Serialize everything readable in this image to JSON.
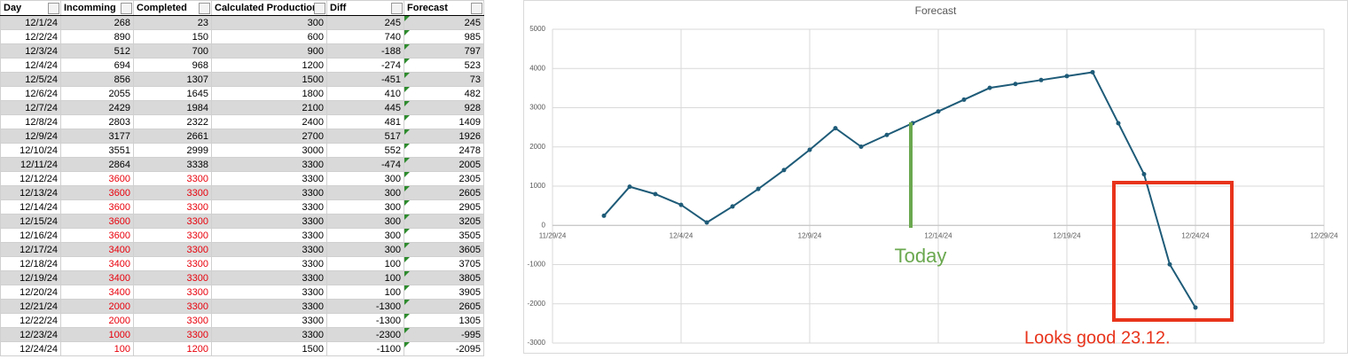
{
  "table": {
    "columns": [
      "Day",
      "Incomming",
      "Completed",
      "Calculated Production",
      "Diff",
      "Forecast"
    ],
    "rows": [
      [
        "12/1/24",
        268,
        23,
        300,
        245,
        245
      ],
      [
        "12/2/24",
        890,
        150,
        600,
        740,
        985
      ],
      [
        "12/3/24",
        512,
        700,
        900,
        -188,
        797
      ],
      [
        "12/4/24",
        694,
        968,
        1200,
        -274,
        523
      ],
      [
        "12/5/24",
        856,
        1307,
        1500,
        -451,
        73
      ],
      [
        "12/6/24",
        2055,
        1645,
        1800,
        410,
        482
      ],
      [
        "12/7/24",
        2429,
        1984,
        2100,
        445,
        928
      ],
      [
        "12/8/24",
        2803,
        2322,
        2400,
        481,
        1409
      ],
      [
        "12/9/24",
        3177,
        2661,
        2700,
        517,
        1926
      ],
      [
        "12/10/24",
        3551,
        2999,
        3000,
        552,
        2478
      ],
      [
        "12/11/24",
        2864,
        3338,
        3300,
        -474,
        2005
      ],
      [
        "12/12/24",
        3600,
        3300,
        3300,
        300,
        2305
      ],
      [
        "12/13/24",
        3600,
        3300,
        3300,
        300,
        2605
      ],
      [
        "12/14/24",
        3600,
        3300,
        3300,
        300,
        2905
      ],
      [
        "12/15/24",
        3600,
        3300,
        3300,
        300,
        3205
      ],
      [
        "12/16/24",
        3600,
        3300,
        3300,
        300,
        3505
      ],
      [
        "12/17/24",
        3400,
        3300,
        3300,
        300,
        3605
      ],
      [
        "12/18/24",
        3400,
        3300,
        3300,
        100,
        3705
      ],
      [
        "12/19/24",
        3400,
        3300,
        3300,
        100,
        3805
      ],
      [
        "12/20/24",
        3400,
        3300,
        3300,
        100,
        3905
      ],
      [
        "12/21/24",
        2000,
        3300,
        3300,
        -1300,
        2605
      ],
      [
        "12/22/24",
        2000,
        3300,
        3300,
        -1300,
        1305
      ],
      [
        "12/23/24",
        1000,
        3300,
        3300,
        -2300,
        -995
      ],
      [
        "12/24/24",
        100,
        1200,
        1500,
        -1100,
        -2095
      ]
    ]
  },
  "chart_data": {
    "type": "line",
    "title": "Forecast",
    "x": [
      "12/1/24",
      "12/2/24",
      "12/3/24",
      "12/4/24",
      "12/5/24",
      "12/6/24",
      "12/7/24",
      "12/8/24",
      "12/9/24",
      "12/10/24",
      "12/11/24",
      "12/12/24",
      "12/13/24",
      "12/14/24",
      "12/15/24",
      "12/16/24",
      "12/17/24",
      "12/18/24",
      "12/19/24",
      "12/20/24",
      "12/21/24",
      "12/22/24",
      "12/23/24",
      "12/24/24"
    ],
    "series": [
      {
        "name": "Forecast",
        "color": "#1e5b78",
        "values": [
          245,
          985,
          797,
          523,
          73,
          482,
          928,
          1409,
          1926,
          2478,
          2005,
          2305,
          2605,
          2905,
          3205,
          3505,
          3605,
          3705,
          3805,
          3905,
          2605,
          1305,
          -995,
          -2095
        ]
      }
    ],
    "xlim": [
      "11/29/24",
      "12/29/24"
    ],
    "xticks": [
      "11/29/24",
      "12/4/24",
      "12/9/24",
      "12/14/24",
      "12/19/24",
      "12/24/24",
      "12/29/24"
    ],
    "ylim": [
      -3000,
      5000
    ],
    "yticks": [
      -3000,
      -2000,
      -1000,
      0,
      1000,
      2000,
      3000,
      4000,
      5000
    ],
    "grid": true,
    "annotations": [
      {
        "text": "Today",
        "color": "#6aa84f"
      },
      {
        "text": "Looks good 23.12.",
        "color": "#e8341c"
      }
    ]
  }
}
